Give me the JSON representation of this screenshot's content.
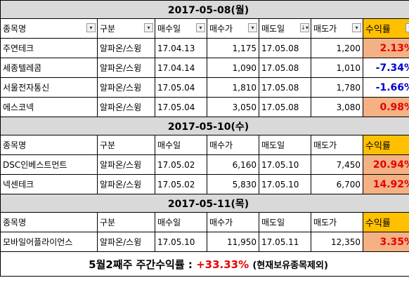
{
  "sections": [
    {
      "date": "2017-05-08(월)",
      "headers": [
        "종목명",
        "구분",
        "매수일",
        "매수가",
        "매도일",
        "매도가",
        "수익률"
      ],
      "rows": [
        {
          "name": "주연테크",
          "type": "알파온/스윙",
          "buy_date": "17.04.13",
          "buy_price": "1,175",
          "sell_date": "17.05.08",
          "sell_price": "1,200",
          "yield": "2.13%",
          "positive": true
        },
        {
          "name": "세종텔레콤",
          "type": "알파온/스윙",
          "buy_date": "17.04.14",
          "buy_price": "1,090",
          "sell_date": "17.05.08",
          "sell_price": "1,010",
          "yield": "-7.34%",
          "positive": false
        },
        {
          "name": "서울전자통신",
          "type": "알파온/스윙",
          "buy_date": "17.05.04",
          "buy_price": "1,810",
          "sell_date": "17.05.08",
          "sell_price": "1,780",
          "yield": "-1.66%",
          "positive": false
        },
        {
          "name": "에스코넥",
          "type": "알파온/스윙",
          "buy_date": "17.05.04",
          "buy_price": "3,050",
          "sell_date": "17.05.08",
          "sell_price": "3,080",
          "yield": "0.98%",
          "positive": true
        }
      ]
    },
    {
      "date": "2017-05-10(수)",
      "headers": [
        "종목명",
        "구분",
        "매수일",
        "매수가",
        "매도일",
        "매도가",
        "수익률"
      ],
      "rows": [
        {
          "name": "DSC인베스트먼트",
          "type": "알파온/스윙",
          "buy_date": "17.05.02",
          "buy_price": "6,160",
          "sell_date": "17.05.10",
          "sell_price": "7,450",
          "yield": "20.94%",
          "positive": true
        },
        {
          "name": "넥센테크",
          "type": "알파온/스윙",
          "buy_date": "17.05.02",
          "buy_price": "5,830",
          "sell_date": "17.05.10",
          "sell_price": "6,700",
          "yield": "14.92%",
          "positive": true
        }
      ]
    },
    {
      "date": "2017-05-11(목)",
      "headers": [
        "종목명",
        "구분",
        "매수일",
        "매수가",
        "매도일",
        "매도가",
        "수익률"
      ],
      "rows": [
        {
          "name": "모바일어플라이언스",
          "type": "알파온/스윙",
          "buy_date": "17.05.10",
          "buy_price": "11,950",
          "sell_date": "17.05.11",
          "sell_price": "12,350",
          "yield": "3.35%",
          "positive": true
        }
      ]
    }
  ],
  "summary": {
    "label": "5월2째주 주간수익률 : ",
    "value": "+33.33%",
    "note": "(현재보유종목제외)"
  },
  "icons": {
    "filter": "filter-dropdown-icon",
    "sorted_filter": "sort-filter-icon"
  },
  "colors": {
    "positive_text": "#e60000",
    "negative_text": "#0000cc",
    "positive_fill": "#f4b183",
    "yield_header_fill": "#ffc000",
    "date_row_fill": "#d9d9d9"
  }
}
